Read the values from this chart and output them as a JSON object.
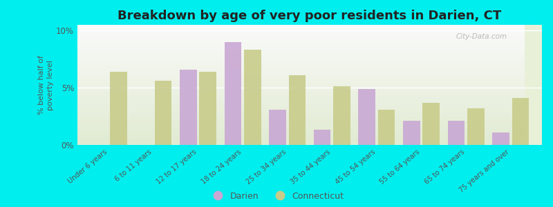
{
  "title": "Breakdown by age of very poor residents in Darien, CT",
  "ylabel": "% below half of\npoverty level",
  "categories": [
    "Under 6 years",
    "6 to 11 years",
    "12 to 17 years",
    "18 to 24 years",
    "25 to 34 years",
    "35 to 44 years",
    "45 to 54 years",
    "55 to 64 years",
    "65 to 74 years",
    "75 years and over"
  ],
  "darien_values": [
    null,
    null,
    6.6,
    9.0,
    3.1,
    1.3,
    4.9,
    2.1,
    2.1,
    1.1
  ],
  "connecticut_values": [
    6.4,
    5.6,
    6.4,
    8.3,
    6.1,
    5.1,
    3.1,
    3.7,
    3.2,
    4.1
  ],
  "darien_color": "#c9a8d4",
  "connecticut_color": "#c8cc8a",
  "background_color": "#00eeee",
  "ylim": [
    0,
    10.5
  ],
  "yticks": [
    0,
    5,
    10
  ],
  "ytick_labels": [
    "0%",
    "5%",
    "10%"
  ],
  "bar_width": 0.38,
  "title_fontsize": 13,
  "watermark": "City-Data.com"
}
